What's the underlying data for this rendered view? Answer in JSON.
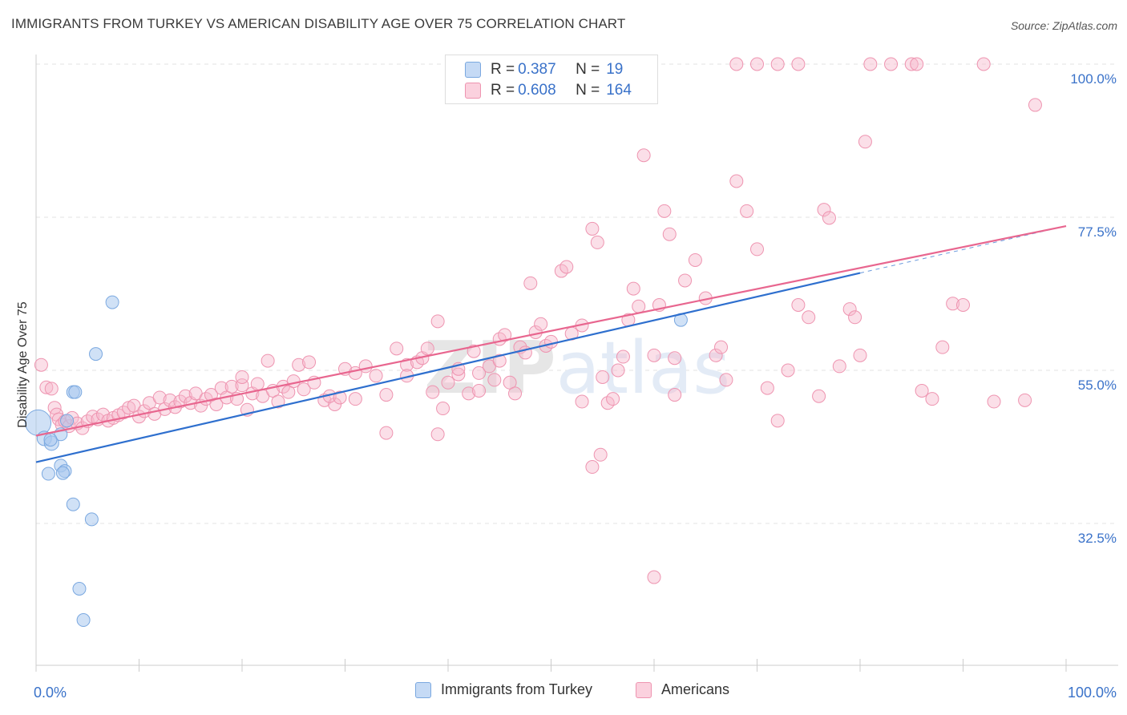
{
  "title": "IMMIGRANTS FROM TURKEY VS AMERICAN DISABILITY AGE OVER 75 CORRELATION CHART",
  "source": "Source: ZipAtlas.com",
  "watermark": "ZIPatlas",
  "colors": {
    "blue_fill": "#a9c8ef",
    "blue_stroke": "#7aa8e0",
    "blue_line": "#2e6fce",
    "pink_fill": "#f6b9cb",
    "pink_stroke": "#ee94b0",
    "pink_line": "#e8668f",
    "tick_label": "#3a72c9",
    "grid": "#e3e3e3"
  },
  "legend": {
    "rows": [
      {
        "r_label": "R = ",
        "r_value": "0.387",
        "n_label": "N = ",
        "n_value": "19",
        "series": "blue"
      },
      {
        "r_label": "R = ",
        "r_value": "0.608",
        "n_label": "N = ",
        "n_value": "164",
        "series": "pink"
      }
    ]
  },
  "bottom_legend": {
    "items": [
      {
        "label": "Immigrants from Turkey",
        "series": "blue"
      },
      {
        "label": "Americans",
        "series": "pink"
      }
    ]
  },
  "chart_data": {
    "type": "scatter",
    "title": "IMMIGRANTS FROM TURKEY VS AMERICAN DISABILITY AGE OVER 75 CORRELATION CHART",
    "xlabel": "",
    "ylabel": "Disability Age Over 75",
    "xlim": [
      0,
      100
    ],
    "ylim": [
      10,
      102
    ],
    "x_tick_labels": [
      {
        "value": 0,
        "label": "0.0%"
      },
      {
        "value": 100,
        "label": "100.0%"
      }
    ],
    "y_tick_labels": [
      {
        "value": 100,
        "label": "100.0%"
      },
      {
        "value": 77.5,
        "label": "77.5%"
      },
      {
        "value": 55,
        "label": "55.0%"
      },
      {
        "value": 32.5,
        "label": "32.5%"
      }
    ],
    "grid": true,
    "legend_position": "top-center",
    "series": [
      {
        "name": "Immigrants from Turkey",
        "color": "#a9c8ef",
        "trend": {
          "x0": 0,
          "y0": 41.5,
          "x1": 80,
          "y1": 69.3,
          "dash_to_x": 100,
          "dash_to_y": 76.2
        },
        "points": [
          [
            0.2,
            47.3,
            16
          ],
          [
            0.8,
            45.0,
            9
          ],
          [
            1.5,
            44.3,
            9
          ],
          [
            3.0,
            47.6,
            8
          ],
          [
            2.4,
            41.0,
            8
          ],
          [
            1.2,
            39.8,
            8
          ],
          [
            2.8,
            40.2,
            8
          ],
          [
            2.6,
            39.9,
            8
          ],
          [
            2.4,
            45.6,
            8
          ],
          [
            3.6,
            51.8,
            8
          ],
          [
            3.8,
            51.8,
            8
          ],
          [
            5.8,
            57.4,
            8
          ],
          [
            7.4,
            65.0,
            8
          ],
          [
            3.6,
            35.3,
            8
          ],
          [
            5.4,
            33.1,
            8
          ],
          [
            4.2,
            22.9,
            8
          ],
          [
            4.6,
            18.3,
            8
          ],
          [
            62.6,
            62.4,
            8
          ],
          [
            1.4,
            44.8,
            8
          ]
        ]
      },
      {
        "name": "Americans",
        "color": "#f6b9cb",
        "trend": {
          "x0": 0,
          "y0": 45.4,
          "x1": 100,
          "y1": 76.2
        },
        "points": [
          [
            0.5,
            55.8,
            8
          ],
          [
            1.0,
            52.5,
            8
          ],
          [
            1.5,
            52.3,
            8
          ],
          [
            1.8,
            49.5,
            8
          ],
          [
            2.0,
            48.5,
            8
          ],
          [
            2.2,
            47.8,
            8
          ],
          [
            2.5,
            47.0,
            8
          ],
          [
            2.8,
            47.5,
            8
          ],
          [
            3.2,
            46.8,
            8
          ],
          [
            3.5,
            48.0,
            8
          ],
          [
            4.0,
            47.2,
            8
          ],
          [
            4.5,
            46.5,
            8
          ],
          [
            5.0,
            47.5,
            8
          ],
          [
            5.5,
            48.2,
            8
          ],
          [
            6.0,
            47.8,
            8
          ],
          [
            6.5,
            48.5,
            8
          ],
          [
            7.0,
            47.6,
            8
          ],
          [
            7.5,
            48.0,
            8
          ],
          [
            8.0,
            48.4,
            8
          ],
          [
            8.5,
            48.8,
            8
          ],
          [
            9.0,
            49.5,
            8
          ],
          [
            9.5,
            49.8,
            8
          ],
          [
            10.0,
            48.2,
            8
          ],
          [
            10.5,
            49.0,
            8
          ],
          [
            11.0,
            50.2,
            8
          ],
          [
            11.5,
            48.6,
            8
          ],
          [
            12.0,
            51.0,
            8
          ],
          [
            12.5,
            49.3,
            8
          ],
          [
            13.0,
            50.6,
            8
          ],
          [
            13.5,
            49.6,
            8
          ],
          [
            14.0,
            50.4,
            8
          ],
          [
            14.5,
            51.2,
            8
          ],
          [
            15.0,
            50.2,
            8
          ],
          [
            15.5,
            51.6,
            8
          ],
          [
            16.0,
            49.8,
            8
          ],
          [
            16.5,
            50.8,
            8
          ],
          [
            17.0,
            51.4,
            8
          ],
          [
            17.5,
            50.0,
            8
          ],
          [
            18.0,
            52.4,
            8
          ],
          [
            18.5,
            51.0,
            8
          ],
          [
            19.0,
            52.6,
            8
          ],
          [
            19.5,
            50.8,
            8
          ],
          [
            20.0,
            52.8,
            8
          ],
          [
            20.5,
            49.2,
            8
          ],
          [
            21.0,
            51.6,
            8
          ],
          [
            21.5,
            53.0,
            8
          ],
          [
            22.0,
            51.2,
            8
          ],
          [
            22.5,
            56.4,
            8
          ],
          [
            23.0,
            52.0,
            8
          ],
          [
            23.5,
            50.4,
            8
          ],
          [
            24.0,
            52.6,
            8
          ],
          [
            24.5,
            51.8,
            8
          ],
          [
            25.0,
            53.4,
            8
          ],
          [
            25.5,
            55.8,
            8
          ],
          [
            26.0,
            52.2,
            8
          ],
          [
            26.5,
            56.2,
            8
          ],
          [
            27.0,
            53.2,
            8
          ],
          [
            28.0,
            50.6,
            8
          ],
          [
            29.0,
            50.0,
            8
          ],
          [
            30.0,
            55.2,
            8
          ],
          [
            31.0,
            50.8,
            8
          ],
          [
            32.0,
            55.6,
            8
          ],
          [
            33.0,
            54.2,
            8
          ],
          [
            34.0,
            51.4,
            8
          ],
          [
            35.0,
            58.2,
            8
          ],
          [
            36.0,
            55.8,
            8
          ],
          [
            37.0,
            56.2,
            8
          ],
          [
            37.5,
            56.8,
            8
          ],
          [
            38.0,
            58.2,
            8
          ],
          [
            38.5,
            51.8,
            8
          ],
          [
            39.0,
            62.2,
            8
          ],
          [
            40.0,
            53.2,
            8
          ],
          [
            41.0,
            54.4,
            8
          ],
          [
            42.0,
            51.6,
            8
          ],
          [
            42.5,
            57.8,
            8
          ],
          [
            43.0,
            54.6,
            8
          ],
          [
            44.0,
            55.6,
            8
          ],
          [
            44.5,
            53.6,
            8
          ],
          [
            45.0,
            59.6,
            8
          ],
          [
            45.5,
            60.2,
            8
          ],
          [
            46.0,
            53.2,
            8
          ],
          [
            46.5,
            51.6,
            8
          ],
          [
            47.0,
            58.4,
            8
          ],
          [
            48.0,
            67.8,
            8
          ],
          [
            48.5,
            60.6,
            8
          ],
          [
            49.0,
            61.8,
            8
          ],
          [
            49.5,
            58.6,
            8
          ],
          [
            50.0,
            59.2,
            8
          ],
          [
            51.0,
            69.6,
            8
          ],
          [
            51.5,
            70.2,
            8
          ],
          [
            52.0,
            60.4,
            8
          ],
          [
            53.0,
            61.6,
            8
          ],
          [
            54.0,
            75.8,
            8
          ],
          [
            54.5,
            73.8,
            8
          ],
          [
            55.0,
            54.0,
            8
          ],
          [
            55.5,
            50.2,
            8
          ],
          [
            56.0,
            50.8,
            8
          ],
          [
            57.0,
            57.0,
            8
          ],
          [
            57.5,
            62.4,
            8
          ],
          [
            58.0,
            67.0,
            8
          ],
          [
            58.5,
            64.4,
            8
          ],
          [
            59.0,
            86.6,
            8
          ],
          [
            60.0,
            57.2,
            8
          ],
          [
            60.5,
            64.6,
            8
          ],
          [
            61.0,
            78.4,
            8
          ],
          [
            61.5,
            75.0,
            8
          ],
          [
            62.0,
            51.4,
            8
          ],
          [
            63.0,
            68.2,
            8
          ],
          [
            64.0,
            71.2,
            8
          ],
          [
            65.0,
            65.6,
            8
          ],
          [
            66.0,
            57.2,
            8
          ],
          [
            66.5,
            58.4,
            8
          ],
          [
            67.0,
            53.6,
            8
          ],
          [
            68.0,
            82.8,
            8
          ],
          [
            69.0,
            78.4,
            8
          ],
          [
            70.0,
            72.8,
            8
          ],
          [
            71.0,
            52.4,
            8
          ],
          [
            72.0,
            47.6,
            8
          ],
          [
            73.0,
            55.0,
            8
          ],
          [
            74.0,
            64.6,
            8
          ],
          [
            75.0,
            62.8,
            8
          ],
          [
            76.0,
            51.2,
            8
          ],
          [
            76.5,
            78.6,
            8
          ],
          [
            77.0,
            77.4,
            8
          ],
          [
            78.0,
            55.6,
            8
          ],
          [
            79.0,
            64.0,
            8
          ],
          [
            79.5,
            62.8,
            8
          ],
          [
            80.0,
            57.2,
            8
          ],
          [
            80.5,
            88.6,
            8
          ],
          [
            81.0,
            100.0,
            8
          ],
          [
            83.0,
            100.0,
            8
          ],
          [
            85.0,
            100.0,
            8
          ],
          [
            85.5,
            100.0,
            8
          ],
          [
            86.0,
            52.0,
            8
          ],
          [
            87.0,
            50.8,
            8
          ],
          [
            88.0,
            58.4,
            8
          ],
          [
            89.0,
            64.8,
            8
          ],
          [
            90.0,
            64.6,
            8
          ],
          [
            92.0,
            100.0,
            8
          ],
          [
            93.0,
            50.4,
            8
          ],
          [
            96.0,
            50.6,
            8
          ],
          [
            97.0,
            94.0,
            8
          ],
          [
            68.0,
            100.0,
            8
          ],
          [
            70.0,
            100.0,
            8
          ],
          [
            72.0,
            100.0,
            8
          ],
          [
            74.0,
            100.0,
            8
          ],
          [
            60.0,
            24.6,
            8
          ],
          [
            54.0,
            40.8,
            8
          ],
          [
            54.8,
            42.6,
            8
          ],
          [
            39.0,
            45.6,
            8
          ],
          [
            34.0,
            45.8,
            8
          ],
          [
            39.5,
            49.4,
            8
          ],
          [
            45.0,
            56.4,
            8
          ],
          [
            43.0,
            52.0,
            8
          ],
          [
            20.0,
            54.0,
            8
          ],
          [
            28.5,
            51.2,
            8
          ],
          [
            36.0,
            54.2,
            8
          ],
          [
            53.0,
            50.4,
            8
          ],
          [
            56.5,
            55.0,
            8
          ],
          [
            62.0,
            56.8,
            8
          ],
          [
            41.0,
            55.2,
            8
          ],
          [
            47.5,
            57.6,
            8
          ],
          [
            29.5,
            51.0,
            8
          ],
          [
            31.0,
            54.6,
            8
          ]
        ]
      }
    ]
  }
}
